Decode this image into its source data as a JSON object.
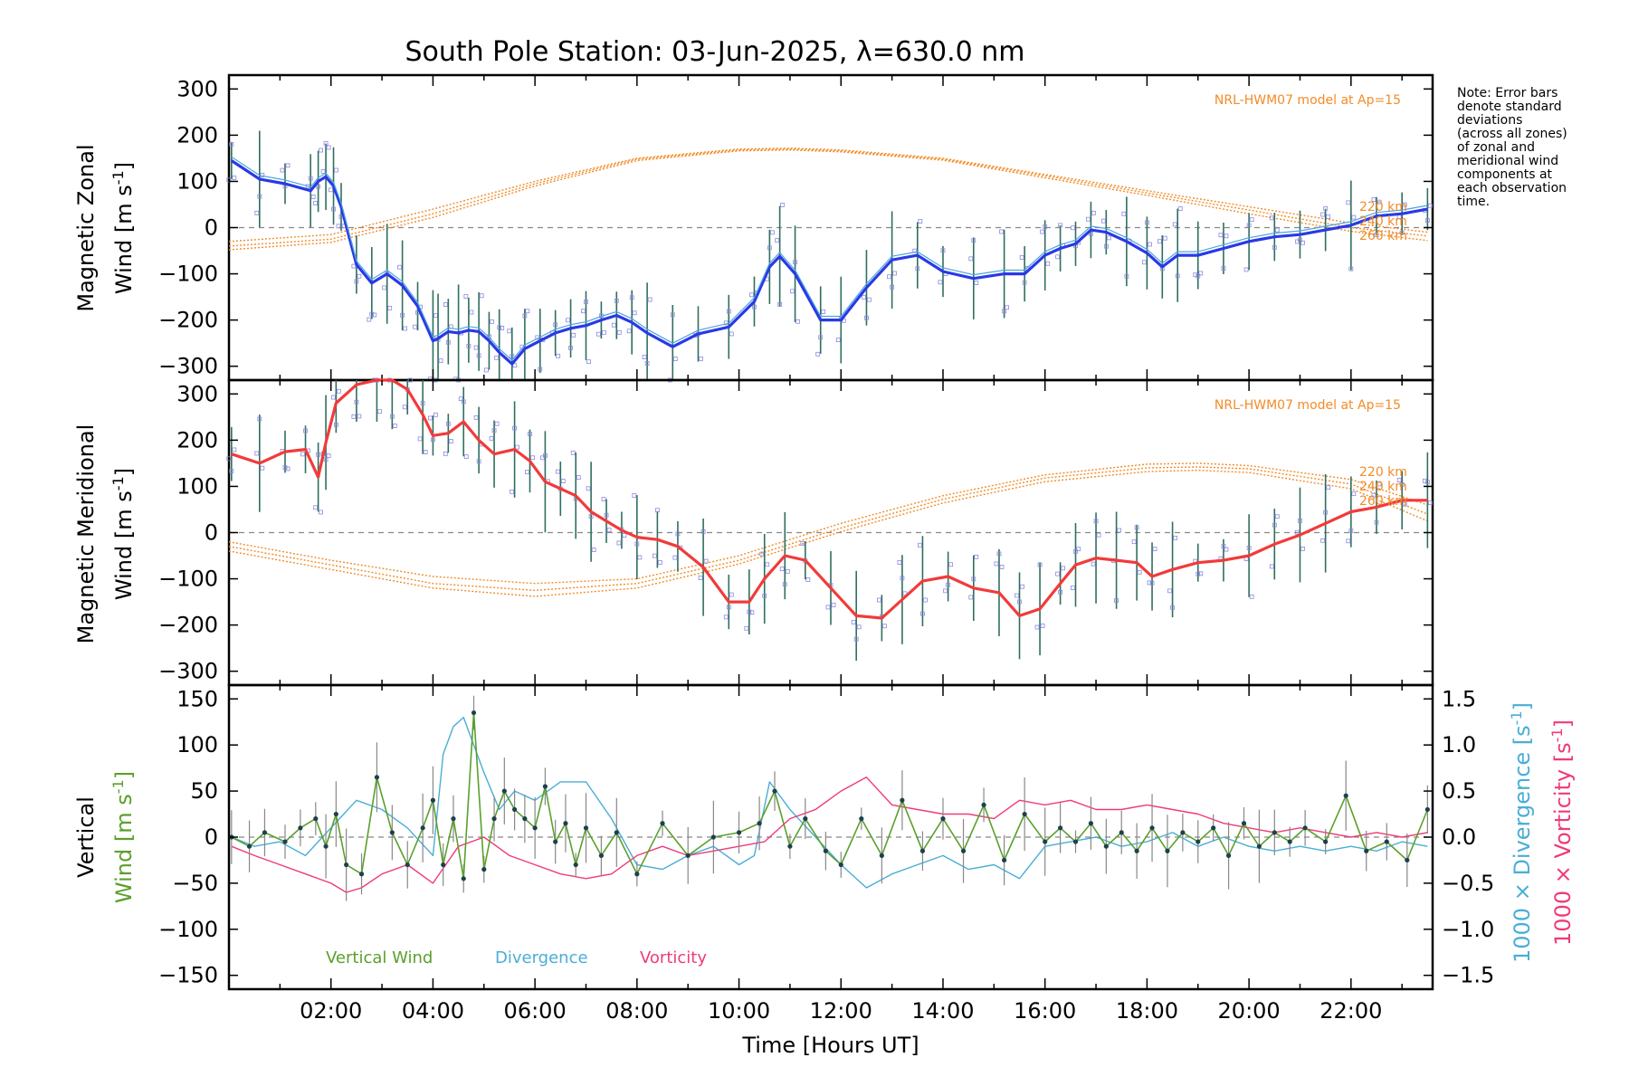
{
  "title": "South Pole Station: 03-Jun-2025, λ=630.0 nm",
  "note_lines": [
    "Note: Error bars",
    "denote standard",
    "deviations",
    "(across all zones)",
    "of zonal and",
    "meridional wind",
    "components at",
    "each observation",
    "time."
  ],
  "colors": {
    "zonal": "#2a39e6",
    "zonal_light": "#4aa6e0",
    "meridional": "#f23a3a",
    "model": "#f28c28",
    "vertical": "#5aa02c",
    "divergence": "#4aaed6",
    "vorticity": "#ef3a7a",
    "errbar": "#2f6f5f",
    "scatter": "#8a88dd"
  },
  "chart_data": [
    {
      "type": "line",
      "title": "Magnetic Zonal Wind",
      "ylabel_line1": "Magnetic Zonal",
      "ylabel_line2": "Wind [m s",
      "ylabel_sup": "-1",
      "ylabel_close": "]",
      "ylim": [
        -330,
        330
      ],
      "yticks": [
        "300",
        "200",
        "100",
        "0",
        "−100",
        "−200",
        "−300"
      ],
      "ytick_values": [
        300,
        200,
        100,
        0,
        -100,
        -200,
        -300
      ],
      "model_label": "NRL-HWM07 model at Ap=15",
      "altitude_labels": [
        "220 km",
        "240 km",
        "260 km"
      ],
      "series": [
        {
          "name": "Zonal wind",
          "x": [
            0.05,
            0.6,
            1.1,
            1.6,
            1.75,
            1.9,
            2.05,
            2.2,
            2.5,
            2.8,
            3.1,
            3.4,
            3.7,
            4.0,
            4.1,
            4.3,
            4.5,
            4.7,
            4.9,
            5.1,
            5.3,
            5.55,
            5.8,
            6.1,
            6.4,
            6.7,
            7.0,
            7.3,
            7.6,
            7.9,
            8.2,
            8.7,
            9.2,
            9.8,
            10.3,
            10.6,
            10.8,
            11.1,
            11.6,
            12.0,
            12.5,
            13.0,
            13.5,
            14.0,
            14.6,
            15.2,
            15.6,
            16.0,
            16.3,
            16.6,
            16.9,
            17.2,
            17.6,
            18.0,
            18.3,
            18.6,
            19.0,
            19.5,
            20.0,
            20.5,
            21.0,
            21.5,
            22.0,
            22.5,
            23.0,
            23.5
          ],
          "y": [
            145,
            105,
            95,
            80,
            100,
            110,
            90,
            45,
            -80,
            -120,
            -100,
            -125,
            -170,
            -245,
            -240,
            -225,
            -228,
            -222,
            -225,
            -245,
            -270,
            -295,
            -262,
            -245,
            -228,
            -218,
            -212,
            -200,
            -190,
            -205,
            -228,
            -258,
            -230,
            -215,
            -160,
            -85,
            -62,
            -100,
            -200,
            -200,
            -130,
            -70,
            -60,
            -95,
            -110,
            -100,
            -100,
            -60,
            -45,
            -35,
            -5,
            -10,
            -30,
            -55,
            -85,
            -60,
            -60,
            -45,
            -30,
            -20,
            -15,
            -5,
            5,
            25,
            30,
            40
          ]
        },
        {
          "name": "Model 220 km",
          "x": [
            0,
            2,
            4,
            6,
            8,
            10,
            11,
            12,
            14,
            16,
            18,
            20,
            22,
            23.5
          ],
          "y": [
            -30,
            -15,
            40,
            100,
            150,
            170,
            172,
            168,
            150,
            115,
            80,
            45,
            10,
            -10
          ]
        },
        {
          "name": "Model 240 km",
          "x": [
            0,
            2,
            4,
            6,
            8,
            10,
            11,
            12,
            14,
            16,
            18,
            20,
            22,
            23.5
          ],
          "y": [
            -40,
            -25,
            30,
            95,
            148,
            168,
            170,
            166,
            148,
            112,
            75,
            38,
            0,
            -18
          ]
        },
        {
          "name": "Model 260 km",
          "x": [
            0,
            2,
            4,
            6,
            8,
            10,
            11,
            12,
            14,
            16,
            18,
            20,
            22,
            23.5
          ],
          "y": [
            -48,
            -32,
            22,
            90,
            145,
            166,
            168,
            164,
            146,
            108,
            70,
            30,
            -8,
            -28
          ]
        }
      ]
    },
    {
      "type": "line",
      "title": "Magnetic Meridional Wind",
      "ylabel_line1": "Magnetic Meridional",
      "ylabel_line2": "Wind [m s",
      "ylabel_sup": "-1",
      "ylabel_close": "]",
      "ylim": [
        -330,
        330
      ],
      "yticks": [
        "300",
        "200",
        "100",
        "0",
        "−100",
        "−200",
        "−300"
      ],
      "ytick_values": [
        300,
        200,
        100,
        0,
        -100,
        -200,
        -300
      ],
      "model_label": "NRL-HWM07 model at Ap=15",
      "altitude_labels": [
        "220 km",
        "240 km",
        "260 km"
      ],
      "series": [
        {
          "name": "Meridional wind",
          "x": [
            0.05,
            0.6,
            1.1,
            1.5,
            1.75,
            1.9,
            2.1,
            2.5,
            2.9,
            3.2,
            3.5,
            3.8,
            4.0,
            4.3,
            4.6,
            4.9,
            5.2,
            5.6,
            5.9,
            6.2,
            6.5,
            6.8,
            7.1,
            7.4,
            7.7,
            8.0,
            8.4,
            8.8,
            9.3,
            9.8,
            10.2,
            10.5,
            10.9,
            11.3,
            11.8,
            12.3,
            12.8,
            13.2,
            13.6,
            14.1,
            14.6,
            15.1,
            15.5,
            15.9,
            16.3,
            16.6,
            17.0,
            17.4,
            17.8,
            18.1,
            18.5,
            19.0,
            19.5,
            20.0,
            20.5,
            21.0,
            21.5,
            22.0,
            22.5,
            23.0,
            23.5
          ],
          "y": [
            170,
            150,
            175,
            180,
            120,
            195,
            280,
            320,
            330,
            330,
            310,
            255,
            210,
            215,
            240,
            200,
            170,
            180,
            155,
            110,
            95,
            80,
            45,
            25,
            5,
            -10,
            -15,
            -30,
            -75,
            -150,
            -150,
            -100,
            -50,
            -60,
            -120,
            -180,
            -185,
            -145,
            -105,
            -95,
            -120,
            -130,
            -180,
            -165,
            -110,
            -70,
            -55,
            -60,
            -65,
            -95,
            -80,
            -65,
            -60,
            -50,
            -25,
            -5,
            20,
            45,
            55,
            70,
            70
          ]
        },
        {
          "name": "Model 220 km",
          "x": [
            0,
            2,
            4,
            6,
            8,
            10,
            12,
            14,
            16,
            18,
            19,
            20,
            22,
            23.5
          ],
          "y": [
            -20,
            -60,
            -95,
            -110,
            -100,
            -50,
            20,
            80,
            125,
            148,
            150,
            145,
            115,
            60
          ]
        },
        {
          "name": "Model 240 km",
          "x": [
            0,
            2,
            4,
            6,
            8,
            10,
            12,
            14,
            16,
            18,
            19,
            20,
            22,
            23.5
          ],
          "y": [
            -30,
            -70,
            -110,
            -125,
            -110,
            -60,
            10,
            72,
            118,
            140,
            142,
            138,
            105,
            40
          ]
        },
        {
          "name": "Model 260 km",
          "x": [
            0,
            2,
            4,
            6,
            8,
            10,
            12,
            14,
            16,
            18,
            19,
            20,
            22,
            23.5
          ],
          "y": [
            -40,
            -80,
            -120,
            -138,
            -120,
            -68,
            2,
            64,
            110,
            132,
            135,
            130,
            95,
            25
          ]
        }
      ]
    },
    {
      "type": "line",
      "title": "Vertical Wind, Divergence, Vorticity",
      "ylabel_left_line1": "Vertical",
      "ylabel_left_line2": "Wind [m s",
      "ylabel_sup": "-1",
      "ylabel_close": "]",
      "ylim": [
        -165,
        165
      ],
      "yticks": [
        "150",
        "100",
        "50",
        "0",
        "−50",
        "−100",
        "−150"
      ],
      "ytick_values": [
        150,
        100,
        50,
        0,
        -50,
        -100,
        -150
      ],
      "y2lim": [
        -1.65,
        1.65
      ],
      "y2ticks": [
        "1.5",
        "1.0",
        "0.5",
        "0.0",
        "−0.5",
        "−1.0",
        "−1.5"
      ],
      "y2tick_values": [
        1.5,
        1.0,
        0.5,
        0.0,
        -0.5,
        -1.0,
        -1.5
      ],
      "ylabel_right_div": "1000 × Divergence [s",
      "ylabel_right_vort": "1000 × Vorticity [s",
      "legend": [
        "Vertical Wind",
        "Divergence",
        "Vorticity"
      ],
      "xlabel": "Time [Hours UT]",
      "xlim": [
        0,
        23.6
      ],
      "xticks": [
        "02:00",
        "04:00",
        "06:00",
        "08:00",
        "10:00",
        "12:00",
        "14:00",
        "16:00",
        "18:00",
        "20:00",
        "22:00"
      ],
      "xtick_values": [
        2,
        4,
        6,
        8,
        10,
        12,
        14,
        16,
        18,
        20,
        22
      ],
      "series": [
        {
          "name": "Vertical Wind",
          "x": [
            0.05,
            0.4,
            0.7,
            1.1,
            1.4,
            1.7,
            1.9,
            2.1,
            2.3,
            2.6,
            2.9,
            3.2,
            3.5,
            3.8,
            4.0,
            4.2,
            4.4,
            4.6,
            4.8,
            5.0,
            5.2,
            5.4,
            5.6,
            5.8,
            6.0,
            6.2,
            6.4,
            6.6,
            6.8,
            7.0,
            7.3,
            7.6,
            8.0,
            8.5,
            9.0,
            9.5,
            10.0,
            10.4,
            10.7,
            11.0,
            11.3,
            11.7,
            12.0,
            12.4,
            12.8,
            13.2,
            13.6,
            14.0,
            14.4,
            14.8,
            15.2,
            15.6,
            16.0,
            16.3,
            16.6,
            16.9,
            17.2,
            17.5,
            17.8,
            18.1,
            18.4,
            18.7,
            19.0,
            19.3,
            19.6,
            19.9,
            20.2,
            20.5,
            20.8,
            21.1,
            21.5,
            21.9,
            22.3,
            22.7,
            23.1,
            23.5
          ],
          "y": [
            0,
            -10,
            5,
            -5,
            10,
            20,
            -10,
            25,
            -30,
            -40,
            65,
            5,
            -30,
            10,
            40,
            -30,
            20,
            -45,
            135,
            -35,
            20,
            50,
            30,
            20,
            10,
            55,
            -5,
            15,
            -30,
            10,
            -20,
            5,
            -40,
            15,
            -20,
            0,
            5,
            15,
            50,
            -10,
            20,
            -15,
            -30,
            20,
            -20,
            40,
            -15,
            20,
            -15,
            35,
            -25,
            25,
            -5,
            10,
            -5,
            15,
            -10,
            5,
            -15,
            10,
            -15,
            5,
            -5,
            10,
            -20,
            15,
            -10,
            5,
            -5,
            10,
            -5,
            45,
            -15,
            -5,
            -25,
            30
          ]
        },
        {
          "name": "Divergence",
          "x": [
            0.05,
            0.5,
            1.0,
            1.5,
            2.0,
            2.5,
            3.0,
            3.5,
            4.0,
            4.2,
            4.4,
            4.6,
            4.8,
            5.0,
            5.3,
            5.6,
            6.0,
            6.5,
            7.0,
            7.5,
            8.0,
            8.5,
            9.0,
            9.5,
            10.0,
            10.3,
            10.6,
            11.0,
            11.5,
            12.0,
            12.5,
            13.0,
            13.5,
            14.0,
            14.5,
            15.0,
            15.5,
            16.0,
            16.5,
            17.0,
            17.5,
            18.0,
            18.5,
            19.0,
            19.5,
            20.0,
            20.5,
            21.0,
            21.5,
            22.0,
            22.5,
            23.0,
            23.5
          ],
          "y": [
            0.0,
            -0.1,
            -0.05,
            -0.2,
            0.1,
            0.4,
            0.3,
            0.1,
            -0.2,
            0.9,
            1.2,
            1.3,
            1.0,
            0.7,
            0.3,
            0.5,
            0.4,
            0.6,
            0.6,
            0.2,
            -0.3,
            -0.35,
            -0.2,
            -0.1,
            -0.3,
            -0.2,
            0.6,
            0.3,
            0.0,
            -0.3,
            -0.55,
            -0.4,
            -0.3,
            -0.2,
            -0.35,
            -0.3,
            -0.45,
            -0.1,
            -0.05,
            0.0,
            -0.1,
            -0.05,
            0.05,
            -0.1,
            0.0,
            -0.1,
            -0.15,
            -0.1,
            -0.15,
            -0.1,
            -0.15,
            -0.05,
            -0.1
          ]
        },
        {
          "name": "Vorticity",
          "x": [
            0.05,
            0.5,
            1.0,
            1.5,
            2.0,
            2.3,
            2.6,
            3.0,
            3.5,
            4.0,
            4.5,
            5.0,
            5.5,
            6.0,
            6.5,
            7.0,
            7.5,
            8.0,
            8.5,
            9.0,
            9.5,
            10.0,
            10.5,
            11.0,
            11.5,
            12.0,
            12.5,
            13.0,
            13.5,
            14.0,
            14.5,
            15.0,
            15.5,
            16.0,
            16.5,
            17.0,
            17.5,
            18.0,
            18.5,
            19.0,
            19.5,
            20.0,
            20.5,
            21.0,
            21.5,
            22.0,
            22.5,
            23.0,
            23.5
          ],
          "y": [
            -0.1,
            -0.2,
            -0.3,
            -0.4,
            -0.5,
            -0.6,
            -0.55,
            -0.4,
            -0.3,
            -0.5,
            -0.1,
            0.0,
            -0.2,
            -0.3,
            -0.4,
            -0.45,
            -0.4,
            -0.2,
            -0.1,
            -0.2,
            -0.15,
            -0.1,
            -0.05,
            0.2,
            0.3,
            0.5,
            0.65,
            0.35,
            0.3,
            0.25,
            0.25,
            0.2,
            0.4,
            0.35,
            0.4,
            0.3,
            0.3,
            0.35,
            0.3,
            0.25,
            0.15,
            0.1,
            0.05,
            0.1,
            0.05,
            0.0,
            0.05,
            0.0,
            0.05
          ]
        }
      ]
    }
  ]
}
